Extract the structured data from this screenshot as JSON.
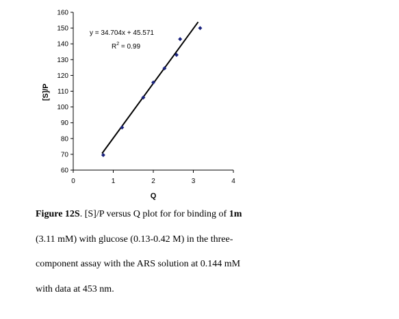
{
  "chart_data": {
    "type": "scatter",
    "title": "",
    "xlabel": "Q",
    "ylabel": "[S]/P",
    "xlim": [
      0,
      4
    ],
    "ylim": [
      60,
      160
    ],
    "x_ticks": [
      "0",
      "1",
      "2",
      "3",
      "4"
    ],
    "y_ticks": [
      "60",
      "70",
      "80",
      "90",
      "100",
      "110",
      "120",
      "130",
      "140",
      "150",
      "160"
    ],
    "grid": false,
    "legend": "none",
    "marker_color": "#1a237e",
    "line_color": "#000000",
    "points": [
      {
        "x": 0.75,
        "y": 69.5
      },
      {
        "x": 1.22,
        "y": 87
      },
      {
        "x": 1.75,
        "y": 106
      },
      {
        "x": 2.0,
        "y": 115.5
      },
      {
        "x": 2.28,
        "y": 124.5
      },
      {
        "x": 2.58,
        "y": 133
      },
      {
        "x": 2.67,
        "y": 143
      },
      {
        "x": 3.17,
        "y": 150
      }
    ],
    "trendline": {
      "slope": 34.704,
      "intercept": 45.571,
      "x_start": 0.72,
      "x_end": 3.12
    },
    "annotations": {
      "equation": "y = 34.704x + 45.571",
      "r_squared_prefix": "R",
      "r_squared_exp": "2",
      "r_squared_value": " = 0.99"
    }
  },
  "caption": {
    "label": "Figure 12S",
    "line1_a": ". [S]/P versus Q plot for for binding of ",
    "compound": "1m",
    "line2": " (3.11 mM) with glucose  (0.13-0.42 M) in the three-",
    "line3": "component assay with the ARS solution at 0.144 mM",
    "line4": "with data at 453 nm."
  }
}
